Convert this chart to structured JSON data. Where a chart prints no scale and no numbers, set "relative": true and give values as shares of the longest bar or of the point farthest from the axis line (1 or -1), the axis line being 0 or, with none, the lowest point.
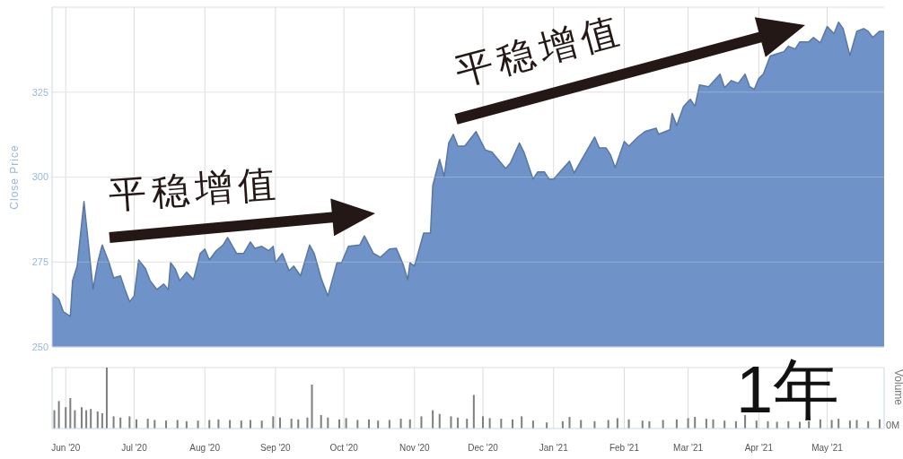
{
  "chart_data": [
    {
      "type": "area",
      "ylabel": "Close Price",
      "color": "#6f93c8",
      "xlim": [
        "2020-05-26",
        "2021-05-26"
      ],
      "ylim": [
        250,
        350
      ],
      "yticks": [
        250,
        275,
        300,
        325
      ],
      "grid": true,
      "tick_labels": "y",
      "xticks": [
        "2020-06-01",
        "2020-07-01",
        "2020-08-01",
        "2020-09-01",
        "2020-10-01",
        "2020-11-01",
        "2020-12-01",
        "2021-01-01",
        "2021-02-01",
        "2021-03-01",
        "2021-04-01",
        "2021-05-01"
      ],
      "x": [
        "2020-05-26",
        "2020-05-29",
        "2020-05-31",
        "2020-06-03",
        "2020-06-04",
        "2020-06-06",
        "2020-06-09",
        "2020-06-11",
        "2020-06-13",
        "2020-06-15",
        "2020-06-17",
        "2020-06-20",
        "2020-06-22",
        "2020-06-25",
        "2020-06-27",
        "2020-06-29",
        "2020-07-01",
        "2020-07-03",
        "2020-07-06",
        "2020-07-08",
        "2020-07-11",
        "2020-07-14",
        "2020-07-16",
        "2020-07-17",
        "2020-07-19",
        "2020-07-21",
        "2020-07-24",
        "2020-07-27",
        "2020-07-30",
        "2020-08-01",
        "2020-08-03",
        "2020-08-06",
        "2020-08-09",
        "2020-08-11",
        "2020-08-15",
        "2020-08-18",
        "2020-08-21",
        "2020-08-23",
        "2020-08-26",
        "2020-08-29",
        "2020-08-31",
        "2020-09-01",
        "2020-09-04",
        "2020-09-07",
        "2020-09-09",
        "2020-09-12",
        "2020-09-16",
        "2020-09-18",
        "2020-09-21",
        "2020-09-24",
        "2020-09-28",
        "2020-09-30",
        "2020-10-03",
        "2020-10-08",
        "2020-10-10",
        "2020-10-14",
        "2020-10-17",
        "2020-10-21",
        "2020-10-24",
        "2020-10-27",
        "2020-10-29",
        "2020-10-30",
        "2020-11-01",
        "2020-11-05",
        "2020-11-08",
        "2020-11-09",
        "2020-11-12",
        "2020-11-14",
        "2020-11-16",
        "2020-11-18",
        "2020-11-20",
        "2020-11-23",
        "2020-11-28",
        "2020-12-02",
        "2020-12-05",
        "2020-12-11",
        "2020-12-13",
        "2020-12-17",
        "2020-12-19",
        "2020-12-23",
        "2020-12-25",
        "2020-12-28",
        "2020-12-30",
        "2021-01-01",
        "2021-01-08",
        "2021-01-10",
        "2021-01-19",
        "2021-01-21",
        "2021-01-24",
        "2021-01-26",
        "2021-01-28",
        "2021-02-01",
        "2021-02-03",
        "2021-02-07",
        "2021-02-10",
        "2021-02-15",
        "2021-02-16",
        "2021-02-21",
        "2021-02-22",
        "2021-02-24",
        "2021-02-27",
        "2021-03-02",
        "2021-03-04",
        "2021-03-06",
        "2021-03-10",
        "2021-03-15",
        "2021-03-17",
        "2021-03-20",
        "2021-03-23",
        "2021-03-26",
        "2021-03-28",
        "2021-03-30",
        "2021-04-01",
        "2021-04-03",
        "2021-04-06",
        "2021-04-09",
        "2021-04-12",
        "2021-04-14",
        "2021-04-17",
        "2021-04-19",
        "2021-04-23",
        "2021-04-25",
        "2021-04-28",
        "2021-05-01",
        "2021-05-04",
        "2021-05-06",
        "2021-05-08",
        "2021-05-11",
        "2021-05-14",
        "2021-05-17",
        "2021-05-19",
        "2021-05-21",
        "2021-05-24",
        "2021-05-26"
      ],
      "values": [
        265.8,
        264,
        260.3,
        259,
        269.5,
        273.8,
        292.8,
        280,
        267,
        274.8,
        280,
        274.8,
        270.3,
        270.9,
        266.9,
        263.3,
        265,
        275.6,
        273,
        269.5,
        266.9,
        268.5,
        266.9,
        274.8,
        273,
        269.5,
        272,
        269.8,
        277.5,
        278.8,
        275.6,
        278.3,
        280,
        282.2,
        277.5,
        277.5,
        280.9,
        279,
        279.6,
        278.3,
        279.6,
        274.8,
        277.5,
        272.4,
        273.8,
        270.9,
        280,
        277.5,
        270.3,
        265,
        274.8,
        274.8,
        279.6,
        280,
        282.7,
        277.5,
        276.4,
        278.8,
        279,
        274.3,
        269.8,
        274.8,
        273.8,
        283.5,
        283.5,
        297.5,
        305.2,
        300.2,
        310,
        312.6,
        309.1,
        309.1,
        313.4,
        308,
        307.3,
        302.5,
        304.1,
        310,
        307.3,
        299.4,
        301.5,
        301.5,
        299.4,
        299.4,
        304.7,
        301.2,
        311.8,
        308.6,
        308.6,
        306.5,
        302.8,
        310.5,
        309.1,
        311.8,
        313.4,
        314.4,
        312.6,
        313.9,
        318.7,
        315.2,
        320.8,
        322.9,
        320.8,
        327.1,
        326.6,
        330.3,
        326.3,
        328.4,
        327.6,
        330.3,
        326.6,
        325.8,
        329,
        330.3,
        335.6,
        336.3,
        336.9,
        338.5,
        337.7,
        339.8,
        339.8,
        341.1,
        339.5,
        344.3,
        342.2,
        345.6,
        343.7,
        335.8,
        342.9,
        343.7,
        342.9,
        341.1,
        342.9,
        342.9
      ],
      "annotations": [
        "平稳增值",
        "平稳增值"
      ]
    },
    {
      "type": "bar",
      "relative": true,
      "ylabel": "Volume",
      "color": "#7f7f7f",
      "xlim": [
        "2020-05-26",
        "2021-05-26"
      ],
      "grid": "x",
      "tick_labels": "x",
      "xticks": [
        {
          "value": "2020-06-01",
          "label": "Jun '20"
        },
        {
          "value": "2020-07-01",
          "label": "Jul '20"
        },
        {
          "value": "2020-08-01",
          "label": "Aug '20"
        },
        {
          "value": "2020-09-01",
          "label": "Sep '20"
        },
        {
          "value": "2020-10-01",
          "label": "Oct '20"
        },
        {
          "value": "2020-11-01",
          "label": "Nov '20"
        },
        {
          "value": "2020-12-01",
          "label": "Dec '20"
        },
        {
          "value": "2021-01-01",
          "label": "Jan '21"
        },
        {
          "value": "2021-02-01",
          "label": "Feb '21"
        },
        {
          "value": "2021-03-01",
          "label": "Mar '21"
        },
        {
          "value": "2021-04-01",
          "label": "Apr '21"
        },
        {
          "value": "2021-05-01",
          "label": "May '21"
        }
      ],
      "x": [
        "2020-05-27",
        "2020-05-29",
        "2020-06-01",
        "2020-06-03",
        "2020-06-05",
        "2020-06-08",
        "2020-06-10",
        "2020-06-12",
        "2020-06-15",
        "2020-06-17",
        "2020-06-19",
        "2020-06-22",
        "2020-06-25",
        "2020-06-29",
        "2020-07-02",
        "2020-07-07",
        "2020-07-10",
        "2020-07-15",
        "2020-07-20",
        "2020-07-24",
        "2020-07-29",
        "2020-08-03",
        "2020-08-07",
        "2020-08-12",
        "2020-08-17",
        "2020-08-21",
        "2020-08-26",
        "2020-08-31",
        "2020-09-03",
        "2020-09-08",
        "2020-09-11",
        "2020-09-15",
        "2020-09-17",
        "2020-09-21",
        "2020-09-24",
        "2020-09-29",
        "2020-10-02",
        "2020-10-07",
        "2020-10-12",
        "2020-10-16",
        "2020-10-21",
        "2020-10-26",
        "2020-10-30",
        "2020-11-04",
        "2020-11-09",
        "2020-11-12",
        "2020-11-17",
        "2020-11-20",
        "2020-11-24",
        "2020-11-27",
        "2020-12-01",
        "2020-12-04",
        "2020-12-09",
        "2020-12-14",
        "2020-12-18",
        "2020-12-23",
        "2020-12-29",
        "2021-01-05",
        "2021-01-08",
        "2021-01-13",
        "2021-01-19",
        "2021-01-25",
        "2021-01-29",
        "2021-02-03",
        "2021-02-09",
        "2021-02-12",
        "2021-02-18",
        "2021-02-24",
        "2021-03-01",
        "2021-03-04",
        "2021-03-09",
        "2021-03-12",
        "2021-03-17",
        "2021-03-22",
        "2021-03-26",
        "2021-03-31",
        "2021-04-05",
        "2021-04-09",
        "2021-04-14",
        "2021-04-19",
        "2021-04-23",
        "2021-04-28",
        "2021-05-03",
        "2021-05-06",
        "2021-05-11",
        "2021-05-14",
        "2021-05-19",
        "2021-05-24"
      ],
      "values": [
        0.3,
        0.45,
        0.35,
        0.5,
        0.3,
        0.35,
        0.3,
        0.32,
        0.28,
        0.25,
        1,
        0.2,
        0.18,
        0.2,
        0.15,
        0.16,
        0.14,
        0.13,
        0.14,
        0.12,
        0.13,
        0.14,
        0.15,
        0.14,
        0.13,
        0.14,
        0.13,
        0.2,
        0.18,
        0.16,
        0.15,
        0.18,
        0.72,
        0.22,
        0.18,
        0.15,
        0.17,
        0.14,
        0.15,
        0.13,
        0.14,
        0.16,
        0.15,
        0.2,
        0.3,
        0.24,
        0.2,
        0.18,
        0.16,
        0.55,
        0.2,
        0.17,
        0.16,
        0.15,
        0.2,
        0.13,
        0.1,
        0.12,
        0.19,
        0.14,
        0.12,
        0.14,
        0.17,
        0.15,
        0.13,
        0.12,
        0.14,
        0.15,
        0.17,
        0.19,
        0.16,
        0.15,
        0.13,
        0.12,
        0.22,
        0.13,
        0.12,
        0.11,
        0.12,
        0.11,
        0.12,
        0.15,
        0.14,
        0.16,
        0.13,
        0.14,
        0.12,
        0.15
      ],
      "annotations": [
        "1年",
        "0M"
      ]
    }
  ]
}
